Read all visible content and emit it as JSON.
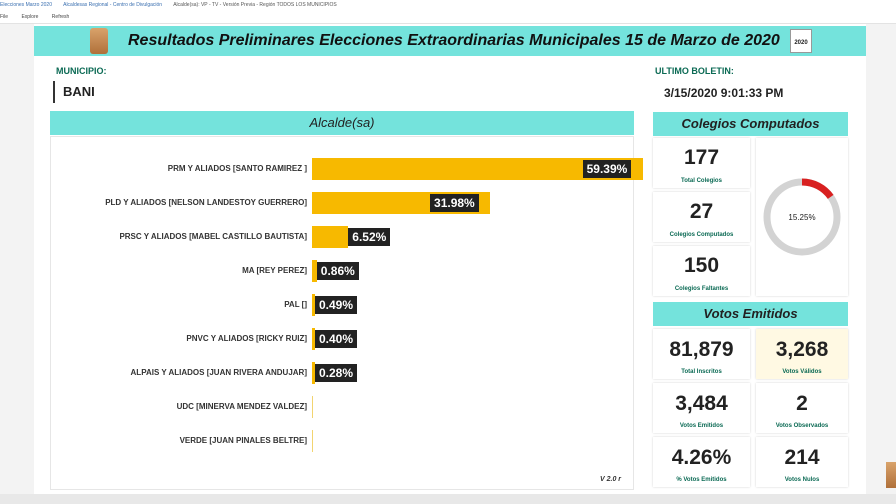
{
  "browser": {
    "tabs": [
      "Elecciones Marzo 2020",
      "Alcaldesas Regional - Centro de Divulgación",
      "Alcalde(sa): VP - TV - Versión Previa - Región TODOS LOS MUNICIPIOS"
    ],
    "toolbar": [
      "File",
      "Explore",
      "Refresh"
    ]
  },
  "header": {
    "title": "Resultados Preliminares Elecciones Extraordinarias Municipales 15 de Marzo de 2020",
    "logo_right_text": "2020"
  },
  "municipio": {
    "label": "MUNICIPIO:",
    "value": "BANI"
  },
  "boletin": {
    "label": "ULTIMO BOLETIN:",
    "value": "3/15/2020 9:01:33 PM"
  },
  "alcalde_panel": {
    "title": "Alcalde(sa)",
    "version": "V 2.0 r"
  },
  "chart_data": {
    "type": "bar",
    "orientation": "horizontal",
    "title": "Alcalde(sa)",
    "categories": [
      "PRM Y ALIADOS [SANTO RAMIREZ ]",
      "PLD Y ALIADOS [NELSON LANDESTOY GUERRERO]",
      "PRSC Y ALIADOS [MABEL CASTILLO BAUTISTA]",
      "MA [REY PEREZ]",
      "PAL []",
      "PNVC Y ALIADOS [RICKY RUIZ]",
      "ALPAIS Y ALIADOS [JUAN RIVERA ANDUJAR]",
      "UDC [MINERVA MENDEZ VALDEZ]",
      "VERDE [JUAN PINALES BELTRE]"
    ],
    "values": [
      59.39,
      31.98,
      6.52,
      0.86,
      0.49,
      0.4,
      0.28,
      null,
      null
    ],
    "labels": [
      "59.39%",
      "31.98%",
      "6.52%",
      "0.86%",
      "0.49%",
      "0.40%",
      "0.28%",
      "",
      ""
    ],
    "xlim": [
      0,
      60
    ],
    "bar_color": "#f7b900"
  },
  "colegios": {
    "title": "Colegios Computados",
    "total": {
      "value": "177",
      "caption": "Total Colegios"
    },
    "computados": {
      "value": "27",
      "caption": "Colegios Computados"
    },
    "faltantes": {
      "value": "150",
      "caption": "Colegios Faltantes"
    },
    "gauge": {
      "label": "15.25%",
      "fraction": 0.1525,
      "color": "#d82020",
      "track_color": "#d3d3d3"
    }
  },
  "votos": {
    "title": "Votos Emitidos",
    "inscritos": {
      "value": "81,879",
      "caption": "Total Inscritos"
    },
    "validos": {
      "value": "3,268",
      "caption": "Votos Válidos"
    },
    "emitidos": {
      "value": "3,484",
      "caption": "Votos Emitidos"
    },
    "observados": {
      "value": "2",
      "caption": "Votos Observados"
    },
    "pct_emitidos": {
      "value": "4.26%",
      "caption": "% Votos Emitidos"
    },
    "nulos": {
      "value": "214",
      "caption": "Votos Nulos"
    }
  },
  "colors": {
    "header": "#74e3dc",
    "accent_text": "#0b6a54",
    "bar": "#f7b900"
  }
}
